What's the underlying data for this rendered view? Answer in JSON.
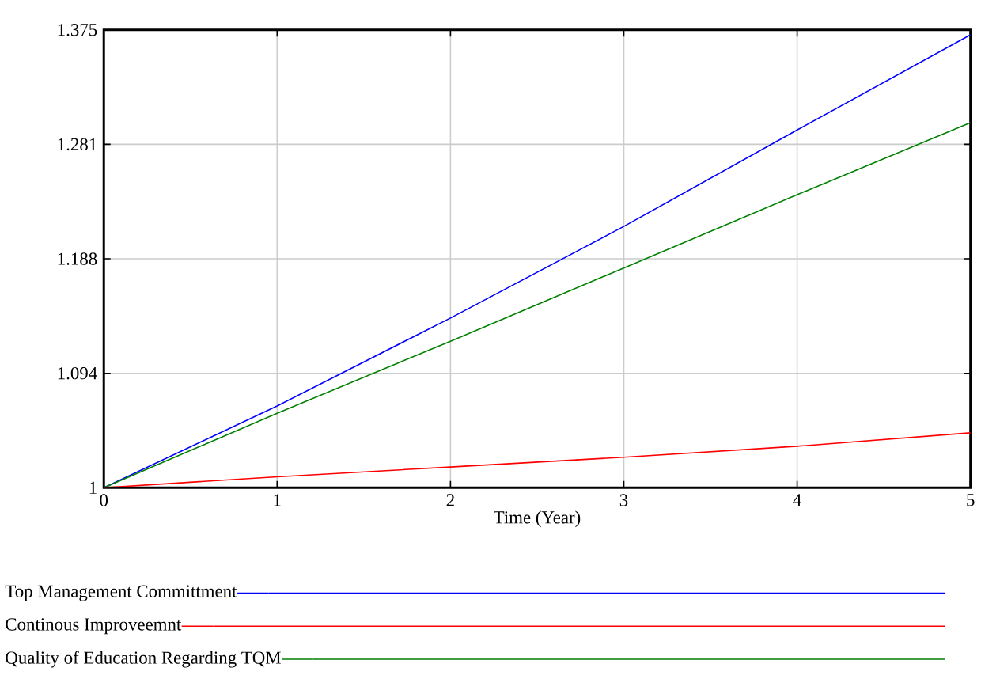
{
  "chart_data": {
    "type": "line",
    "xlabel": "Time (Year)",
    "x": [
      0,
      1,
      2,
      3,
      4,
      5
    ],
    "series": [
      {
        "name": "Top Management Committment",
        "color": "#0000ff",
        "values": [
          1.0,
          1.067,
          1.139,
          1.214,
          1.293,
          1.371
        ]
      },
      {
        "name": "Continous Improveemnt",
        "color": "#ff0000",
        "values": [
          1.0,
          1.009,
          1.017,
          1.025,
          1.034,
          1.045
        ]
      },
      {
        "name": "Quality of Education Regarding TQM",
        "color": "#008000",
        "values": [
          1.0,
          1.061,
          1.12,
          1.18,
          1.24,
          1.299
        ]
      }
    ],
    "xlim": [
      0,
      5
    ],
    "xticks": [
      0,
      1,
      2,
      3,
      4,
      5
    ],
    "ylim": [
      1,
      1.375
    ],
    "yticks": [
      1,
      {
        "value": 1.09375,
        "label": "1.094"
      },
      {
        "value": 1.1875,
        "label": "1.188"
      },
      {
        "value": 1.28125,
        "label": "1.281"
      },
      1.375
    ],
    "grid": true,
    "legend": "bottom"
  }
}
